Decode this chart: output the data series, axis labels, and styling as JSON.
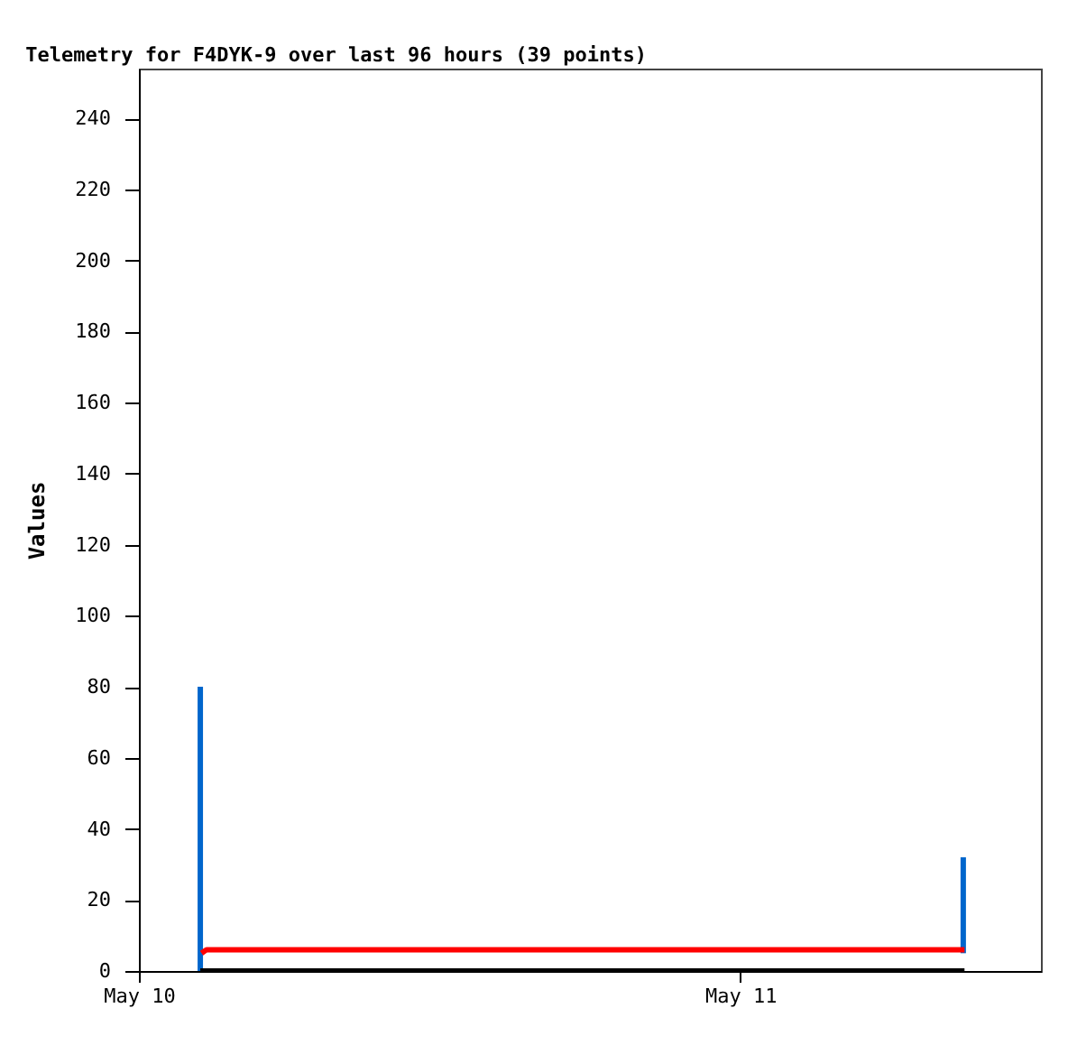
{
  "chart_data": {
    "type": "line",
    "title": "Telemetry for F4DYK-9 over last 96 hours (39 points)",
    "ylabel": "Values",
    "xlim": [
      "--05-10",
      "--05-11T12:00"
    ],
    "xticks": [
      {
        "value": "--05-10",
        "label": "May 10"
      },
      {
        "value": "--05-11",
        "label": "May 11"
      }
    ],
    "ylim": [
      0,
      254
    ],
    "yticks": [
      0,
      20,
      40,
      60,
      80,
      100,
      120,
      140,
      160,
      180,
      200,
      220,
      240
    ],
    "grid": false,
    "marker": "none",
    "line_style": "solid",
    "series": [
      {
        "color": "#0066cc",
        "x": [
          "--05-10T02:27",
          "--05-10T02:27"
        ],
        "values": [
          0,
          80
        ]
      },
      {
        "color": "#0066cc",
        "x": [
          "--05-11T08:54",
          "--05-11T08:54"
        ],
        "values": [
          32,
          5
        ]
      },
      {
        "color": "#ff0000",
        "x": [
          "--05-10T02:30",
          "--05-10T02:42",
          "--05-11T08:57"
        ],
        "values": [
          5,
          6,
          6
        ]
      },
      {
        "color": "#000000",
        "x": [
          "--05-10T02:27",
          "--05-11T08:57"
        ],
        "values": [
          0,
          0
        ]
      }
    ]
  }
}
